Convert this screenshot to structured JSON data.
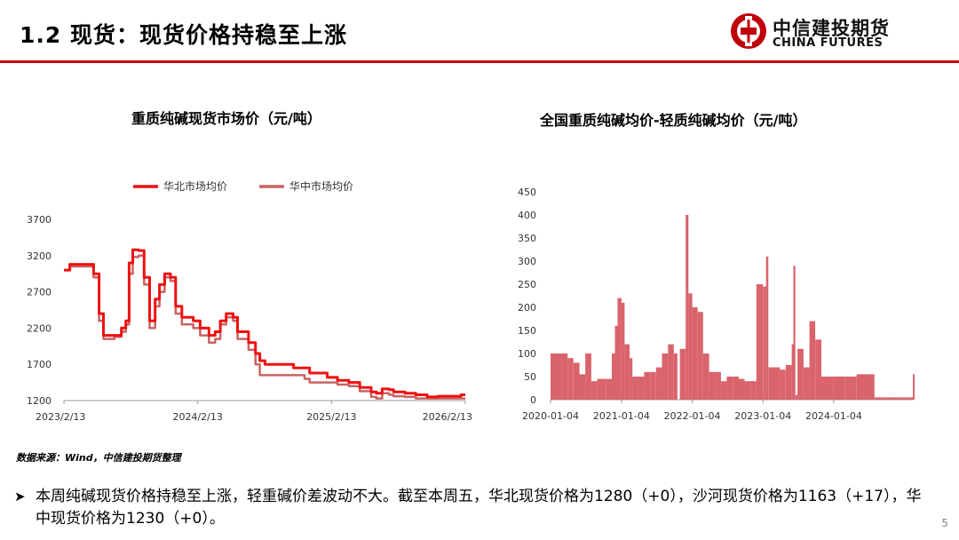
{
  "header": {
    "title": "1.2 现货：现货价格持稳至上涨",
    "logo_cn": "中信建投期货",
    "logo_en": "CHINA FUTURES",
    "accent_color": "#c0000a"
  },
  "source_note": "数据来源：Wind，中信建投期货整理",
  "bullet": "本周纯碱现货价格持稳至上涨，轻重碱价差波动不大。截至本周五，华北现货价格为1280（+0），沙河现货价格为1163（+17），华中现货价格为1230（+0）。",
  "page_number": "5",
  "charts": {
    "left": {
      "title": "重质纯碱现货市场价（元/吨）"
    },
    "right": {
      "title": "全国重质纯碱均价-轻质纯碱均价（元/吨）"
    }
  },
  "chart_data": [
    {
      "type": "line",
      "title": "重质纯碱现货市场价（元/吨）",
      "x_ticks": [
        "2023/2/13",
        "2024/2/13",
        "2025/2/13",
        "2026/2/13"
      ],
      "y_ticks": [
        1200,
        1700,
        2200,
        2700,
        3200,
        3700
      ],
      "ylim": [
        1200,
        3700
      ],
      "xlim": [
        "2023-02-13",
        "2026-02-13"
      ],
      "legend_position": "top",
      "series": [
        {
          "name": "华北市场均价",
          "color": "#ee1111",
          "points": [
            [
              "2023-02-13",
              3000
            ],
            [
              "2023-03-01",
              3080
            ],
            [
              "2023-04-10",
              3080
            ],
            [
              "2023-05-05",
              2950
            ],
            [
              "2023-05-20",
              2400
            ],
            [
              "2023-06-01",
              2100
            ],
            [
              "2023-07-01",
              2100
            ],
            [
              "2023-07-20",
              2200
            ],
            [
              "2023-08-01",
              2300
            ],
            [
              "2023-08-10",
              3100
            ],
            [
              "2023-08-20",
              3280
            ],
            [
              "2023-09-05",
              3270
            ],
            [
              "2023-09-20",
              2900
            ],
            [
              "2023-10-05",
              2300
            ],
            [
              "2023-10-20",
              2600
            ],
            [
              "2023-11-01",
              2800
            ],
            [
              "2023-11-15",
              2950
            ],
            [
              "2023-12-01",
              2900
            ],
            [
              "2023-12-15",
              2500
            ],
            [
              "2024-01-01",
              2350
            ],
            [
              "2024-02-01",
              2300
            ],
            [
              "2024-02-20",
              2200
            ],
            [
              "2024-03-15",
              2100
            ],
            [
              "2024-04-01",
              2150
            ],
            [
              "2024-04-15",
              2300
            ],
            [
              "2024-05-01",
              2400
            ],
            [
              "2024-05-20",
              2350
            ],
            [
              "2024-06-01",
              2150
            ],
            [
              "2024-07-01",
              2000
            ],
            [
              "2024-07-20",
              1850
            ],
            [
              "2024-08-01",
              1750
            ],
            [
              "2024-08-15",
              1700
            ],
            [
              "2024-10-15",
              1700
            ],
            [
              "2024-11-01",
              1650
            ],
            [
              "2024-12-01",
              1650
            ],
            [
              "2024-12-15",
              1580
            ],
            [
              "2025-01-15",
              1580
            ],
            [
              "2025-02-01",
              1520
            ],
            [
              "2025-03-01",
              1480
            ],
            [
              "2025-04-01",
              1450
            ],
            [
              "2025-05-01",
              1380
            ],
            [
              "2025-06-01",
              1320
            ],
            [
              "2025-06-15",
              1300
            ],
            [
              "2025-07-01",
              1360
            ],
            [
              "2025-07-20",
              1350
            ],
            [
              "2025-08-01",
              1320
            ],
            [
              "2025-09-01",
              1300
            ],
            [
              "2025-10-01",
              1280
            ],
            [
              "2025-11-01",
              1250
            ],
            [
              "2025-12-01",
              1260
            ],
            [
              "2026-01-15",
              1260
            ],
            [
              "2026-02-01",
              1280
            ],
            [
              "2026-02-13",
              1280
            ]
          ]
        },
        {
          "name": "华中市场均价",
          "color": "#c86464",
          "points": [
            [
              "2023-02-13",
              3000
            ],
            [
              "2023-03-01",
              3050
            ],
            [
              "2023-04-10",
              3050
            ],
            [
              "2023-05-05",
              2900
            ],
            [
              "2023-05-20",
              2300
            ],
            [
              "2023-06-01",
              2050
            ],
            [
              "2023-07-01",
              2080
            ],
            [
              "2023-07-20",
              2150
            ],
            [
              "2023-08-01",
              2250
            ],
            [
              "2023-08-10",
              2950
            ],
            [
              "2023-08-20",
              3180
            ],
            [
              "2023-09-05",
              3200
            ],
            [
              "2023-09-20",
              2800
            ],
            [
              "2023-10-05",
              2200
            ],
            [
              "2023-10-20",
              2500
            ],
            [
              "2023-11-01",
              2700
            ],
            [
              "2023-11-15",
              2900
            ],
            [
              "2023-12-01",
              2850
            ],
            [
              "2023-12-15",
              2400
            ],
            [
              "2024-01-01",
              2250
            ],
            [
              "2024-02-01",
              2200
            ],
            [
              "2024-02-20",
              2100
            ],
            [
              "2024-03-15",
              2000
            ],
            [
              "2024-04-01",
              2050
            ],
            [
              "2024-04-15",
              2250
            ],
            [
              "2024-05-01",
              2350
            ],
            [
              "2024-05-20",
              2300
            ],
            [
              "2024-06-01",
              2050
            ],
            [
              "2024-07-01",
              1900
            ],
            [
              "2024-07-20",
              1700
            ],
            [
              "2024-08-01",
              1550
            ],
            [
              "2024-08-15",
              1550
            ],
            [
              "2024-10-15",
              1550
            ],
            [
              "2024-11-01",
              1550
            ],
            [
              "2024-12-01",
              1500
            ],
            [
              "2024-12-15",
              1450
            ],
            [
              "2025-01-15",
              1450
            ],
            [
              "2025-02-01",
              1450
            ],
            [
              "2025-03-01",
              1420
            ],
            [
              "2025-04-01",
              1400
            ],
            [
              "2025-05-01",
              1330
            ],
            [
              "2025-06-01",
              1250
            ],
            [
              "2025-06-15",
              1230
            ],
            [
              "2025-07-01",
              1300
            ],
            [
              "2025-07-20",
              1280
            ],
            [
              "2025-08-01",
              1260
            ],
            [
              "2025-09-01",
              1250
            ],
            [
              "2025-10-01",
              1230
            ],
            [
              "2025-11-01",
              1230
            ],
            [
              "2025-12-01",
              1230
            ],
            [
              "2026-01-15",
              1230
            ],
            [
              "2026-02-01",
              1230
            ],
            [
              "2026-02-13",
              1230
            ]
          ]
        }
      ]
    },
    {
      "type": "bar",
      "title": "全国重质纯碱均价-轻质纯碱均价（元/吨）",
      "x_ticks": [
        "2020-01-04",
        "2021-01-04",
        "2022-01-04",
        "2023-01-04",
        "2024-01-04"
      ],
      "y_ticks": [
        0,
        50,
        100,
        150,
        200,
        250,
        300,
        350,
        400,
        450
      ],
      "ylim": [
        0,
        450
      ],
      "xlim": [
        "2020-01-04",
        "2025-02-15"
      ],
      "color": "#d9646c",
      "points": [
        [
          "2020-01-04",
          100
        ],
        [
          "2020-03-01",
          100
        ],
        [
          "2020-04-01",
          90
        ],
        [
          "2020-05-01",
          80
        ],
        [
          "2020-06-01",
          55
        ],
        [
          "2020-07-01",
          100
        ],
        [
          "2020-08-01",
          40
        ],
        [
          "2020-09-01",
          45
        ],
        [
          "2020-10-15",
          45
        ],
        [
          "2020-11-15",
          100
        ],
        [
          "2020-12-01",
          160
        ],
        [
          "2020-12-15",
          220
        ],
        [
          "2021-01-04",
          210
        ],
        [
          "2021-01-20",
          120
        ],
        [
          "2021-02-15",
          90
        ],
        [
          "2021-03-01",
          50
        ],
        [
          "2021-04-01",
          50
        ],
        [
          "2021-05-01",
          60
        ],
        [
          "2021-06-01",
          60
        ],
        [
          "2021-07-01",
          70
        ],
        [
          "2021-08-01",
          100
        ],
        [
          "2021-09-01",
          120
        ],
        [
          "2021-10-01",
          100
        ],
        [
          "2021-10-20",
          0
        ],
        [
          "2021-11-01",
          110
        ],
        [
          "2021-12-01",
          400
        ],
        [
          "2021-12-15",
          230
        ],
        [
          "2022-01-04",
          200
        ],
        [
          "2022-02-01",
          190
        ],
        [
          "2022-03-01",
          100
        ],
        [
          "2022-04-01",
          60
        ],
        [
          "2022-05-01",
          60
        ],
        [
          "2022-06-01",
          40
        ],
        [
          "2022-07-01",
          50
        ],
        [
          "2022-08-01",
          50
        ],
        [
          "2022-09-01",
          45
        ],
        [
          "2022-10-01",
          40
        ],
        [
          "2022-11-01",
          40
        ],
        [
          "2022-12-01",
          250
        ],
        [
          "2023-01-04",
          245
        ],
        [
          "2023-01-20",
          310
        ],
        [
          "2023-02-01",
          70
        ],
        [
          "2023-03-01",
          70
        ],
        [
          "2023-04-01",
          65
        ],
        [
          "2023-05-01",
          75
        ],
        [
          "2023-06-01",
          120
        ],
        [
          "2023-06-10",
          290
        ],
        [
          "2023-06-20",
          10
        ],
        [
          "2023-07-01",
          110
        ],
        [
          "2023-08-01",
          70
        ],
        [
          "2023-09-01",
          170
        ],
        [
          "2023-10-01",
          130
        ],
        [
          "2023-11-01",
          50
        ],
        [
          "2023-12-01",
          50
        ],
        [
          "2024-01-04",
          50
        ],
        [
          "2024-02-01",
          50
        ],
        [
          "2024-03-01",
          50
        ],
        [
          "2024-04-01",
          50
        ],
        [
          "2024-05-01",
          55
        ],
        [
          "2024-06-01",
          55
        ],
        [
          "2024-07-01",
          55
        ],
        [
          "2024-08-01",
          5
        ],
        [
          "2024-10-01",
          5
        ],
        [
          "2024-12-01",
          5
        ],
        [
          "2025-02-01",
          5
        ],
        [
          "2025-02-15",
          55
        ]
      ]
    }
  ]
}
